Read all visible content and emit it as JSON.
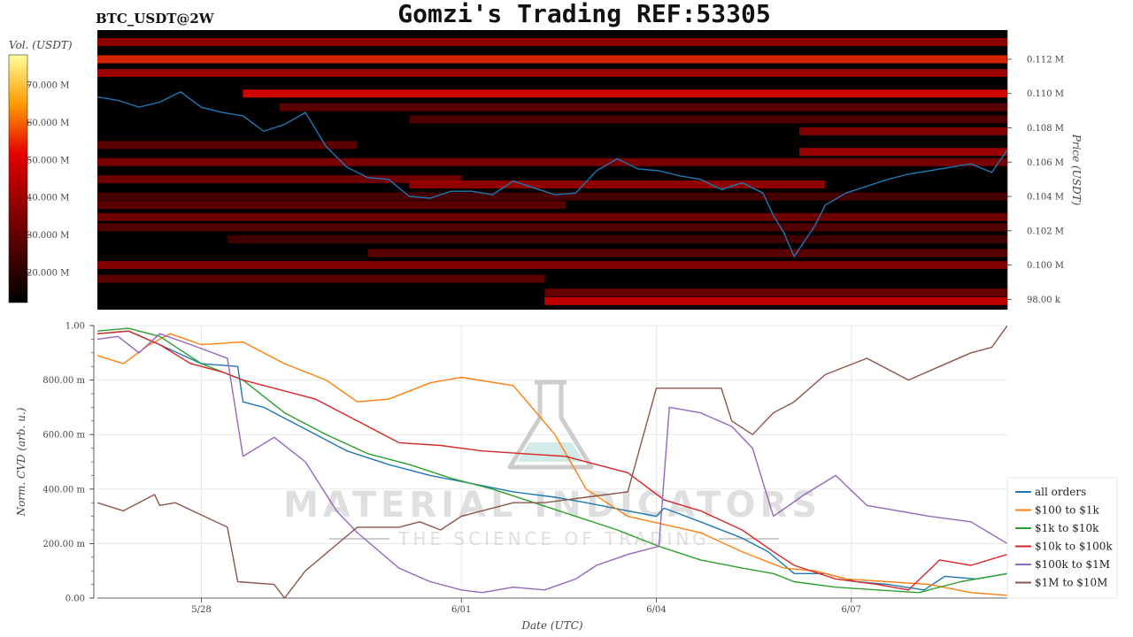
{
  "header": {
    "title": "Gomzi's Trading REF:53305",
    "pair": "BTC_USDT@2W"
  },
  "watermark": {
    "line1": "MATERIAL INDICATORS",
    "line2": "THE SCIENCE OF TRADING"
  },
  "colors": {
    "price_line": "#1f77b4",
    "heat_low": "#000000",
    "heat_mid": "#cc0000",
    "heat_high": "#ffff66"
  },
  "chart_data": [
    {
      "type": "heatmap",
      "name": "orderbook-heatmap",
      "colorbar_label": "Vol. (USDT)",
      "colorbar_ticks": [
        "20.000 M",
        "30.000 M",
        "40.000 M",
        "50.000 M",
        "60.000 M",
        "70.000 M"
      ],
      "colorbar_values": [
        20,
        30,
        40,
        50,
        60,
        70
      ],
      "colorbar_range": [
        12,
        78
      ],
      "ylabel": "Price (USDT)",
      "y_ticks": [
        "98.00 k",
        "0.100 M",
        "0.102 M",
        "0.104 M",
        "0.106 M",
        "0.108 M",
        "0.110 M",
        "0.112 M"
      ],
      "y_tick_values": [
        98000,
        100000,
        102000,
        104000,
        106000,
        108000,
        110000,
        112000
      ],
      "ylim": [
        97400,
        113700
      ],
      "xlim": [
        0,
        17.5
      ],
      "liquidity_bands": [
        {
          "price": 113000,
          "x_start": 0.0,
          "x_end": 17.5,
          "vol": 40
        },
        {
          "price": 112000,
          "x_start": 0.0,
          "x_end": 17.5,
          "vol": 55
        },
        {
          "price": 111200,
          "x_start": 0.0,
          "x_end": 17.5,
          "vol": 42
        },
        {
          "price": 110000,
          "x_start": 2.8,
          "x_end": 17.5,
          "vol": 52
        },
        {
          "price": 109200,
          "x_start": 3.5,
          "x_end": 17.5,
          "vol": 30
        },
        {
          "price": 108500,
          "x_start": 6.0,
          "x_end": 17.5,
          "vol": 28
        },
        {
          "price": 107800,
          "x_start": 13.5,
          "x_end": 17.5,
          "vol": 38
        },
        {
          "price": 107000,
          "x_start": 0.0,
          "x_end": 5.0,
          "vol": 30
        },
        {
          "price": 106600,
          "x_start": 13.5,
          "x_end": 17.5,
          "vol": 42
        },
        {
          "price": 106000,
          "x_start": 0.0,
          "x_end": 17.5,
          "vol": 36
        },
        {
          "price": 105000,
          "x_start": 0.0,
          "x_end": 7.0,
          "vol": 34
        },
        {
          "price": 104700,
          "x_start": 6.0,
          "x_end": 14.0,
          "vol": 40
        },
        {
          "price": 104000,
          "x_start": 0.0,
          "x_end": 17.5,
          "vol": 26
        },
        {
          "price": 103500,
          "x_start": 0.0,
          "x_end": 9.0,
          "vol": 30
        },
        {
          "price": 102800,
          "x_start": 0.0,
          "x_end": 17.5,
          "vol": 34
        },
        {
          "price": 102200,
          "x_start": 0.0,
          "x_end": 17.5,
          "vol": 28
        },
        {
          "price": 101500,
          "x_start": 2.5,
          "x_end": 17.5,
          "vol": 25
        },
        {
          "price": 100700,
          "x_start": 5.2,
          "x_end": 17.5,
          "vol": 30
        },
        {
          "price": 100000,
          "x_start": 0.0,
          "x_end": 17.5,
          "vol": 38
        },
        {
          "price": 99200,
          "x_start": 0.0,
          "x_end": 8.6,
          "vol": 30
        },
        {
          "price": 98400,
          "x_start": 8.6,
          "x_end": 17.5,
          "vol": 32
        },
        {
          "price": 97900,
          "x_start": 8.6,
          "x_end": 17.5,
          "vol": 48
        }
      ],
      "price_series": {
        "name": "price",
        "x": [
          0.0,
          0.4,
          0.8,
          1.2,
          1.6,
          2.0,
          2.4,
          2.8,
          3.2,
          3.6,
          4.0,
          4.4,
          4.8,
          5.2,
          5.6,
          6.0,
          6.4,
          6.8,
          7.2,
          7.6,
          8.0,
          8.4,
          8.8,
          9.2,
          9.6,
          10.0,
          10.4,
          10.8,
          11.2,
          11.6,
          12.0,
          12.4,
          12.8,
          13.0,
          13.2,
          13.4,
          13.6,
          13.8,
          14.0,
          14.4,
          14.8,
          15.2,
          15.6,
          16.0,
          16.4,
          16.8,
          17.2,
          17.5
        ],
        "y": [
          109800,
          109600,
          109200,
          109500,
          110100,
          109200,
          108900,
          108700,
          107800,
          108200,
          108900,
          106900,
          105700,
          105100,
          105000,
          104000,
          103900,
          104300,
          104300,
          104100,
          104900,
          104500,
          104100,
          104200,
          105500,
          106200,
          105600,
          105500,
          105200,
          105000,
          104400,
          104800,
          104200,
          102900,
          101900,
          100500,
          101400,
          102300,
          103500,
          104200,
          104600,
          105000,
          105300,
          105500,
          105700,
          105900,
          105400,
          106700
        ]
      },
      "x_ticks": []
    },
    {
      "type": "line",
      "name": "cvd",
      "xlabel": "Date (UTC)",
      "ylabel": "Norm. CVD (arb. u.)",
      "x_ticks": [
        "5/28",
        "6/01",
        "6/04",
        "6/07"
      ],
      "x_tick_values": [
        2.0,
        7.0,
        10.75,
        14.5
      ],
      "xlim": [
        0,
        17.5
      ],
      "y_ticks": [
        "0.00",
        "200.00 m",
        "400.00 m",
        "600.00 m",
        "800.00 m",
        "1.00"
      ],
      "y_tick_values": [
        0,
        0.2,
        0.4,
        0.6,
        0.8,
        1.0
      ],
      "ylim": [
        0,
        1.0
      ],
      "grid": true,
      "legend_position": "right",
      "series": [
        {
          "name": "all orders",
          "color": "#1f77b4",
          "x": [
            0.0,
            0.6,
            1.2,
            2.0,
            2.7,
            2.8,
            3.2,
            4.0,
            4.8,
            5.6,
            6.4,
            7.2,
            8.0,
            8.8,
            9.4,
            10.2,
            10.75,
            10.9,
            11.6,
            12.4,
            12.9,
            13.4,
            14.0,
            14.6,
            15.2,
            15.9,
            16.3,
            16.9,
            17.5
          ],
          "y": [
            0.97,
            0.98,
            0.93,
            0.86,
            0.85,
            0.72,
            0.7,
            0.62,
            0.54,
            0.49,
            0.45,
            0.42,
            0.39,
            0.37,
            0.35,
            0.32,
            0.3,
            0.33,
            0.28,
            0.22,
            0.17,
            0.09,
            0.09,
            0.06,
            0.05,
            0.03,
            0.08,
            0.07,
            0.09
          ]
        },
        {
          "name": "$100 to $1k",
          "color": "#ff7f0e",
          "x": [
            0.0,
            0.5,
            1.0,
            1.4,
            2.0,
            2.8,
            3.6,
            4.4,
            5.0,
            5.6,
            6.4,
            7.0,
            8.0,
            8.8,
            9.4,
            10.2,
            10.9,
            11.6,
            12.4,
            13.2,
            13.8,
            14.4,
            15.2,
            16.0,
            16.8,
            17.5
          ],
          "y": [
            0.89,
            0.86,
            0.93,
            0.97,
            0.93,
            0.94,
            0.86,
            0.8,
            0.72,
            0.73,
            0.79,
            0.81,
            0.78,
            0.6,
            0.4,
            0.3,
            0.27,
            0.24,
            0.17,
            0.11,
            0.1,
            0.07,
            0.06,
            0.05,
            0.02,
            0.01
          ]
        },
        {
          "name": "$1k to $10k",
          "color": "#2ca02c",
          "x": [
            0.0,
            0.6,
            1.2,
            2.0,
            2.8,
            3.6,
            4.4,
            5.2,
            6.0,
            6.8,
            7.6,
            8.4,
            9.2,
            10.0,
            10.8,
            11.6,
            12.4,
            13.0,
            13.4,
            14.2,
            15.0,
            15.8,
            16.6,
            17.5
          ],
          "y": [
            0.98,
            0.99,
            0.96,
            0.86,
            0.8,
            0.68,
            0.6,
            0.53,
            0.49,
            0.44,
            0.4,
            0.35,
            0.3,
            0.25,
            0.19,
            0.14,
            0.11,
            0.09,
            0.06,
            0.04,
            0.03,
            0.02,
            0.06,
            0.09
          ]
        },
        {
          "name": "$10k to $100k",
          "color": "#d62728",
          "x": [
            0.0,
            0.6,
            1.2,
            1.8,
            2.4,
            2.8,
            3.4,
            4.2,
            5.0,
            5.8,
            6.6,
            7.4,
            8.2,
            9.0,
            9.6,
            10.2,
            10.9,
            11.6,
            12.4,
            13.0,
            13.4,
            14.2,
            15.0,
            15.6,
            16.2,
            16.8,
            17.5
          ],
          "y": [
            0.97,
            0.98,
            0.93,
            0.86,
            0.83,
            0.8,
            0.77,
            0.73,
            0.65,
            0.57,
            0.56,
            0.54,
            0.53,
            0.52,
            0.49,
            0.46,
            0.36,
            0.32,
            0.25,
            0.17,
            0.12,
            0.07,
            0.05,
            0.03,
            0.14,
            0.12,
            0.16
          ]
        },
        {
          "name": "$100k to $1M",
          "color": "#9467bd",
          "x": [
            0.0,
            0.4,
            0.8,
            1.2,
            1.8,
            2.5,
            2.8,
            3.4,
            4.0,
            4.6,
            5.0,
            5.8,
            6.4,
            7.0,
            7.4,
            8.0,
            8.6,
            9.2,
            9.6,
            10.2,
            10.8,
            11.0,
            11.6,
            12.2,
            12.6,
            13.0,
            13.6,
            14.2,
            14.8,
            15.4,
            16.0,
            16.8,
            17.5
          ],
          "y": [
            0.95,
            0.96,
            0.9,
            0.97,
            0.93,
            0.88,
            0.52,
            0.59,
            0.5,
            0.32,
            0.24,
            0.11,
            0.06,
            0.03,
            0.02,
            0.04,
            0.03,
            0.07,
            0.12,
            0.16,
            0.19,
            0.7,
            0.68,
            0.63,
            0.55,
            0.3,
            0.38,
            0.45,
            0.34,
            0.32,
            0.3,
            0.28,
            0.2
          ]
        },
        {
          "name": "$1M to $10M",
          "color": "#8c564b",
          "x": [
            0.0,
            0.5,
            1.1,
            1.2,
            1.5,
            2.5,
            2.7,
            3.4,
            3.6,
            4.0,
            5.0,
            5.8,
            6.2,
            6.6,
            7.0,
            8.0,
            8.6,
            9.4,
            10.2,
            10.75,
            11.2,
            11.6,
            12.0,
            12.2,
            12.6,
            13.0,
            13.4,
            14.0,
            14.8,
            15.6,
            16.2,
            16.8,
            17.2,
            17.5
          ],
          "y": [
            0.35,
            0.32,
            0.38,
            0.34,
            0.35,
            0.26,
            0.06,
            0.05,
            0.0,
            0.1,
            0.26,
            0.26,
            0.28,
            0.25,
            0.3,
            0.35,
            0.35,
            0.37,
            0.39,
            0.77,
            0.77,
            0.77,
            0.77,
            0.65,
            0.6,
            0.68,
            0.72,
            0.82,
            0.88,
            0.8,
            0.85,
            0.9,
            0.92,
            1.0
          ]
        }
      ]
    }
  ]
}
